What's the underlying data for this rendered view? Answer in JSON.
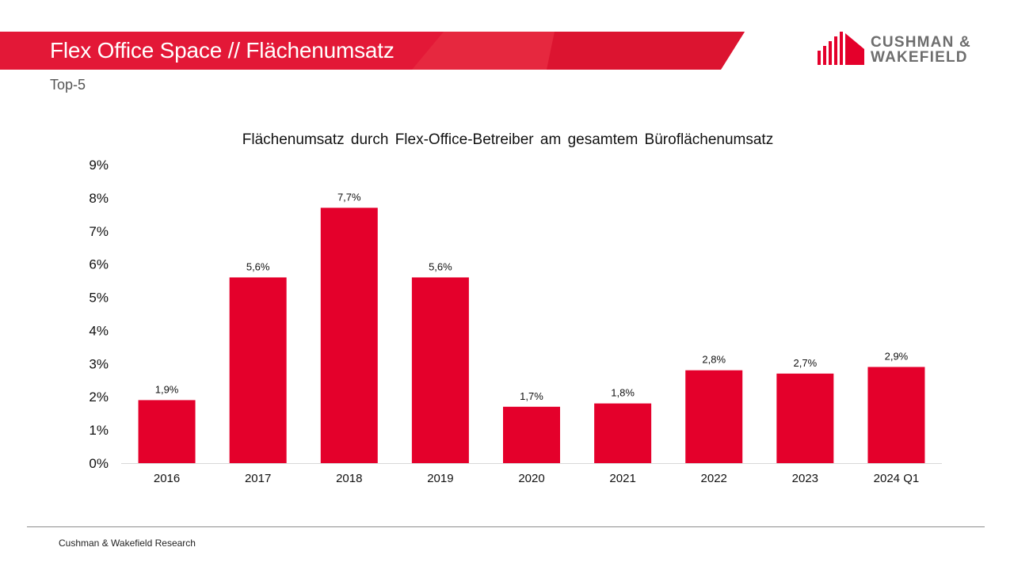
{
  "header": {
    "title": "Flex Office Space // Flächenumsatz",
    "subtitle": "Top-5"
  },
  "logo": {
    "line1": "CUSHMAN &",
    "line2": "WAKEFIELD",
    "icon": "cushman-wakefield-logo-icon"
  },
  "colors": {
    "brand_red": "#e4002b",
    "band_red": "#e31837",
    "bar_red": "#e4002b"
  },
  "chart_data": {
    "type": "bar",
    "title": "Flächenumsatz durch Flex-Office-Betreiber am gesamtem Büroflächenumsatz",
    "categories": [
      "2016",
      "2017",
      "2018",
      "2019",
      "2020",
      "2021",
      "2022",
      "2023",
      "2024 Q1"
    ],
    "values": [
      1.9,
      5.6,
      7.7,
      5.6,
      1.7,
      1.8,
      2.8,
      2.7,
      2.9
    ],
    "data_labels": [
      "1,9%",
      "5,6%",
      "7,7%",
      "5,6%",
      "1,7%",
      "1,8%",
      "2,8%",
      "2,7%",
      "2,9%"
    ],
    "y_ticks": [
      "0%",
      "1%",
      "2%",
      "3%",
      "4%",
      "5%",
      "6%",
      "7%",
      "8%",
      "9%"
    ],
    "ylim": [
      0,
      9
    ],
    "xlabel": "",
    "ylabel": "",
    "grid": false,
    "legend": "none"
  },
  "footer": {
    "source": "Cushman & Wakefield Research"
  }
}
